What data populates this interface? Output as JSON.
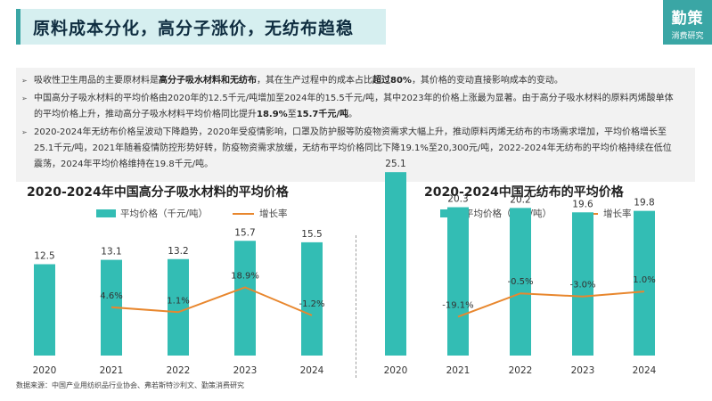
{
  "header": {
    "title": "原料成本分化，高分子涨价，无纺布趋稳",
    "logo_line1": "勤策",
    "logo_line2": "消费研究"
  },
  "bullets": [
    [
      {
        "t": "吸收性卫生用品的主要原材料是"
      },
      {
        "t": "高分子吸水材料和无纺布",
        "b": true
      },
      {
        "t": "，其在生产过程中的成本占比"
      },
      {
        "t": "超过80%",
        "b": true
      },
      {
        "t": "，其价格的变动直接影响成本的变动。"
      }
    ],
    [
      {
        "t": "中国高分子吸水材料的平均价格由2020年的12.5千元/吨增加至2024年的15.5千元/吨，其中2023年的价格上涨最为显著。由于高分子吸水材料的原料丙烯酸单体的平均价格上升，推动高分子吸水材料平均价格同比提升"
      },
      {
        "t": "18.9%",
        "b": true
      },
      {
        "t": "至"
      },
      {
        "t": "15.7千元/吨",
        "b": true
      },
      {
        "t": "。"
      }
    ],
    [
      {
        "t": "2020-2024年无纺布价格呈波动下降趋势，2020年受疫情影响，口罩及防护服等防疫物资需求大幅上升，推动原料丙烯无纺布的市场需求增加，平均价格增长至25.1千元/吨，2021年随着疫情防控形势好转，防疫物资需求放缓，无纺布平均价格同比下降19.1%至20,300元/吨，2022-2024年无纺布的平均价格持续在低位震荡，2024年平均价格维持在19.8千元/吨。"
      }
    ]
  ],
  "legend": {
    "bar_label": "平均价格（千元/吨）",
    "line_label": "增长率"
  },
  "colors": {
    "bar": "#33bdb4",
    "line": "#e8872e",
    "accent": "#3aa6a5"
  },
  "source": "数据来源：中国产业用纺织品行业协会、弗若斯特沙利文、勤策消费研究",
  "chart_data": [
    {
      "type": "bar",
      "title": "2020-2024年中国高分子吸水材料的平均价格",
      "categories": [
        "2020",
        "2021",
        "2022",
        "2023",
        "2024"
      ],
      "series": [
        {
          "name": "平均价格（千元/吨）",
          "values": [
            12.5,
            13.1,
            13.2,
            15.7,
            15.5
          ],
          "labels": [
            "12.5",
            "13.1",
            "13.2",
            "15.7",
            "15.5"
          ]
        },
        {
          "name": "增长率",
          "type": "line",
          "values": [
            null,
            4.6,
            1.1,
            18.9,
            -1.2
          ],
          "labels": [
            "",
            "4.6%",
            "1.1%",
            "18.9%",
            "-1.2%"
          ]
        }
      ],
      "ylim": [
        0,
        27
      ],
      "line_ylim": [
        -30,
        60
      ]
    },
    {
      "type": "bar",
      "title": "2020-2024中国无纺布的平均价格",
      "categories": [
        "2020",
        "2021",
        "2022",
        "2023",
        "2024"
      ],
      "series": [
        {
          "name": "平均价格（千元/吨）",
          "values": [
            25.1,
            20.3,
            20.2,
            19.6,
            19.8
          ],
          "labels": [
            "25.1",
            "20.3",
            "20.2",
            "19.6",
            "19.8"
          ]
        },
        {
          "name": "增长率",
          "type": "line",
          "values": [
            null,
            -19.1,
            -0.5,
            -3.0,
            1.0
          ],
          "labels": [
            "",
            "-19.1%",
            "-0.5%",
            "-3.0%",
            "1.0%"
          ]
        }
      ],
      "ylim": [
        0,
        27
      ],
      "line_ylim": [
        -50,
        50
      ]
    }
  ]
}
